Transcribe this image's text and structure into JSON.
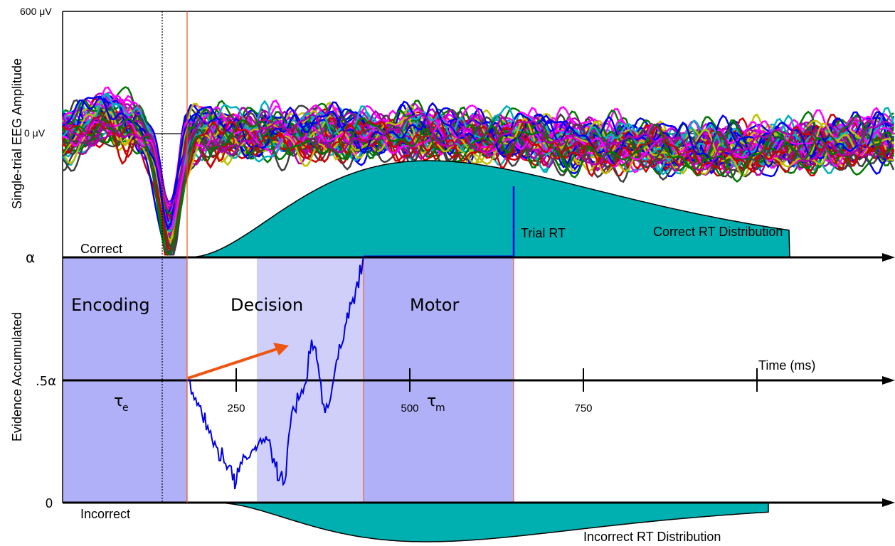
{
  "eeg_panel": {
    "ylabel": "Single-trial EEG Amplitude",
    "tick_top": "600 μV",
    "tick_zero": "0 μV",
    "trace_colors": [
      "#0000ee",
      "#d00000",
      "#007700",
      "#b000b0",
      "#00b0c0",
      "#c0c000",
      "#404040",
      "#ff00ff"
    ],
    "correct_label": "Correct",
    "trial_rt_label": "Trial RT",
    "correct_rt_label": "Correct RT Distribution"
  },
  "model_panel": {
    "ylabel": "Evidence Accumulated",
    "tick_alpha": "α",
    "tick_half": ".5α",
    "tick_zero": "0",
    "stage_encoding": "Encoding",
    "stage_decision": "Decision",
    "stage_motor": "Motor",
    "tau_e": "τ",
    "tau_e_sub": "e",
    "tau_m": "τ",
    "tau_m_sub": "m",
    "time_label": "Time (ms)",
    "time_ticks": [
      "250",
      "500",
      "750"
    ],
    "incorrect_label": "Incorrect",
    "incorrect_rt_label": "Incorrect RT Distribution"
  },
  "colors": {
    "encoding_fill": "#b0b0f8",
    "decision_fill": "#cfcffa",
    "motor_fill": "#b0b0f8",
    "distribution_fill": "#00b0b0",
    "drift_arrow": "#ee5511",
    "evidence_path": "#0000dd",
    "onset_line": "#ee5511"
  }
}
